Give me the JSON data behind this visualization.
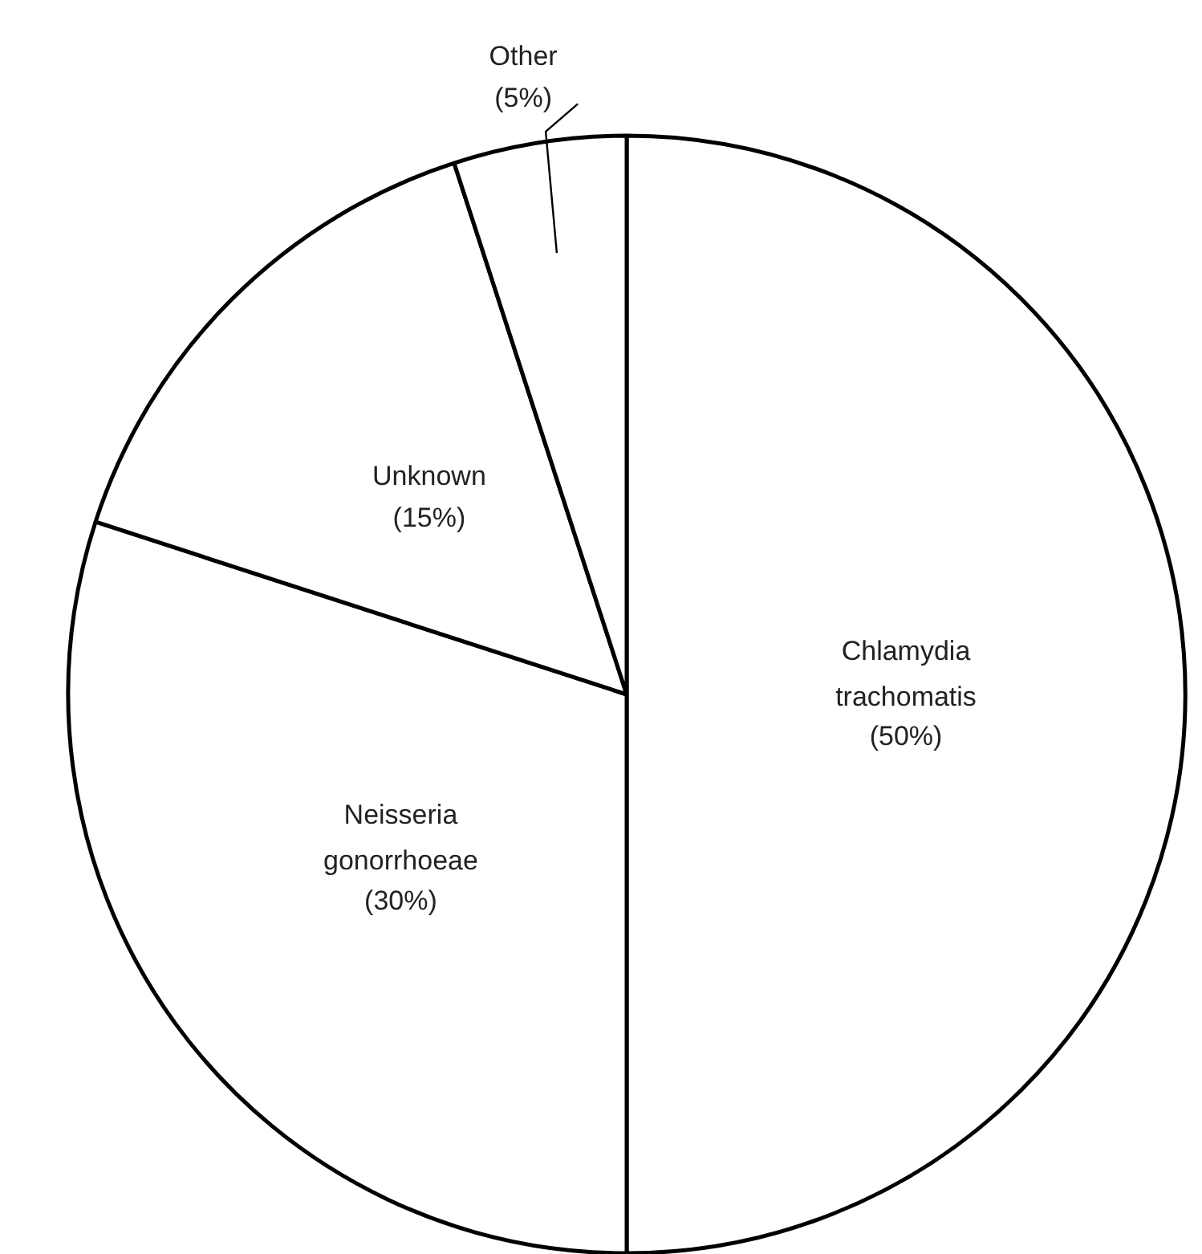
{
  "chart_data": {
    "type": "pie",
    "categories": [
      "Chlamydia trachomatis",
      "Neisseria gonorrhoeae",
      "Unknown",
      "Other"
    ],
    "values": [
      50,
      30,
      15,
      5
    ],
    "value_labels": [
      "(50%)",
      "(30%)",
      "(15%)",
      "(5%)"
    ],
    "colors": [
      "#ffffff",
      "#ffffff",
      "#ffffff",
      "#ffffff"
    ]
  }
}
